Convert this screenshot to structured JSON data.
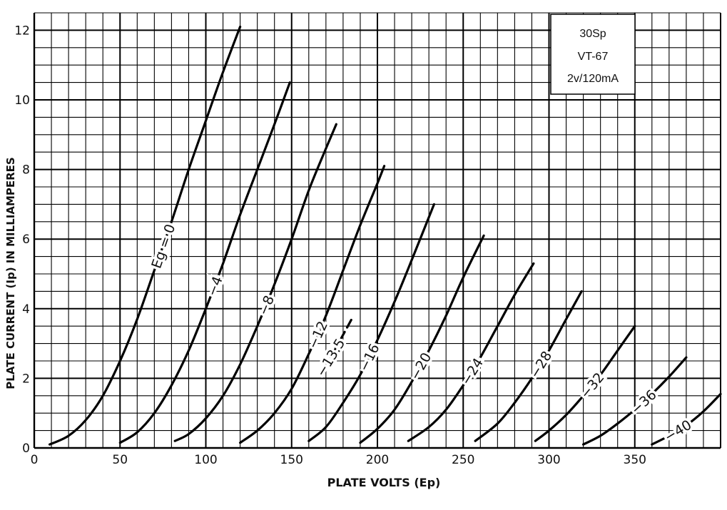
{
  "chart_data": {
    "type": "line",
    "xlabel": "PLATE VOLTS (Ep)",
    "ylabel": "PLATE CURRENT (Ip) IN MILLIAMPERES",
    "xlim": [
      0,
      400
    ],
    "ylim": [
      0,
      12.5
    ],
    "x_ticks": [
      "0",
      "50",
      "100",
      "150",
      "200",
      "250",
      "300",
      "350"
    ],
    "y_ticks": [
      "0",
      "2",
      "4",
      "6",
      "8",
      "10",
      "12"
    ],
    "grid": true,
    "info_box": [
      "30Sp",
      "VT-67",
      "2v/120mA"
    ],
    "series": [
      {
        "name": "Eg = 0",
        "label": "Eg = 0",
        "x": [
          9,
          20,
          30,
          40,
          50,
          60,
          70,
          80,
          90,
          100,
          110,
          120
        ],
        "y": [
          0.1,
          0.35,
          0.8,
          1.5,
          2.5,
          3.7,
          5.1,
          6.5,
          8.0,
          9.4,
          10.8,
          12.1
        ]
      },
      {
        "name": "-4",
        "label": "−4",
        "x": [
          50,
          60,
          70,
          80,
          90,
          100,
          110,
          120,
          130,
          140,
          149
        ],
        "y": [
          0.15,
          0.45,
          1.0,
          1.8,
          2.8,
          4.0,
          5.3,
          6.7,
          8.0,
          9.3,
          10.5
        ]
      },
      {
        "name": "-8",
        "label": "−8",
        "x": [
          82,
          90,
          100,
          110,
          120,
          130,
          140,
          150,
          160,
          170,
          176
        ],
        "y": [
          0.2,
          0.4,
          0.85,
          1.5,
          2.4,
          3.5,
          4.7,
          6.0,
          7.4,
          8.6,
          9.3
        ]
      },
      {
        "name": "-12",
        "label": "−12",
        "x": [
          120,
          130,
          140,
          150,
          160,
          170,
          180,
          190,
          200,
          204
        ],
        "y": [
          0.15,
          0.5,
          1.0,
          1.7,
          2.7,
          3.8,
          5.1,
          6.4,
          7.6,
          8.1
        ]
      },
      {
        "name": "-13.5",
        "label": "−13.5",
        "dashed": true,
        "x": [
          167,
          170,
          175,
          180,
          185
        ],
        "y": [
          2.1,
          2.4,
          2.8,
          3.25,
          3.7
        ]
      },
      {
        "name": "-16",
        "label": "−16",
        "x": [
          160,
          170,
          180,
          190,
          200,
          210,
          220,
          233
        ],
        "y": [
          0.2,
          0.6,
          1.3,
          2.1,
          3.1,
          4.2,
          5.4,
          7.0
        ]
      },
      {
        "name": "-20",
        "label": "−20",
        "x": [
          190,
          200,
          210,
          220,
          230,
          240,
          250,
          262
        ],
        "y": [
          0.15,
          0.55,
          1.1,
          1.9,
          2.8,
          3.8,
          4.9,
          6.1
        ]
      },
      {
        "name": "-24",
        "label": "−24",
        "x": [
          218,
          230,
          240,
          250,
          260,
          270,
          280,
          291
        ],
        "y": [
          0.2,
          0.6,
          1.1,
          1.8,
          2.6,
          3.5,
          4.4,
          5.3
        ]
      },
      {
        "name": "-28",
        "label": "−28",
        "x": [
          257,
          270,
          280,
          290,
          300,
          310,
          319
        ],
        "y": [
          0.2,
          0.7,
          1.3,
          2.0,
          2.8,
          3.7,
          4.5
        ]
      },
      {
        "name": "-32",
        "label": "−32",
        "x": [
          292,
          300,
          310,
          320,
          330,
          340,
          350
        ],
        "y": [
          0.2,
          0.5,
          0.95,
          1.5,
          2.1,
          2.8,
          3.5
        ]
      },
      {
        "name": "-36",
        "label": "−36",
        "x": [
          320,
          330,
          340,
          350,
          360,
          370,
          380
        ],
        "y": [
          0.1,
          0.35,
          0.7,
          1.1,
          1.55,
          2.05,
          2.6
        ]
      },
      {
        "name": "-40",
        "label": "−40",
        "x": [
          360,
          370,
          380,
          390,
          400
        ],
        "y": [
          0.1,
          0.35,
          0.65,
          1.05,
          1.55
        ]
      }
    ]
  }
}
